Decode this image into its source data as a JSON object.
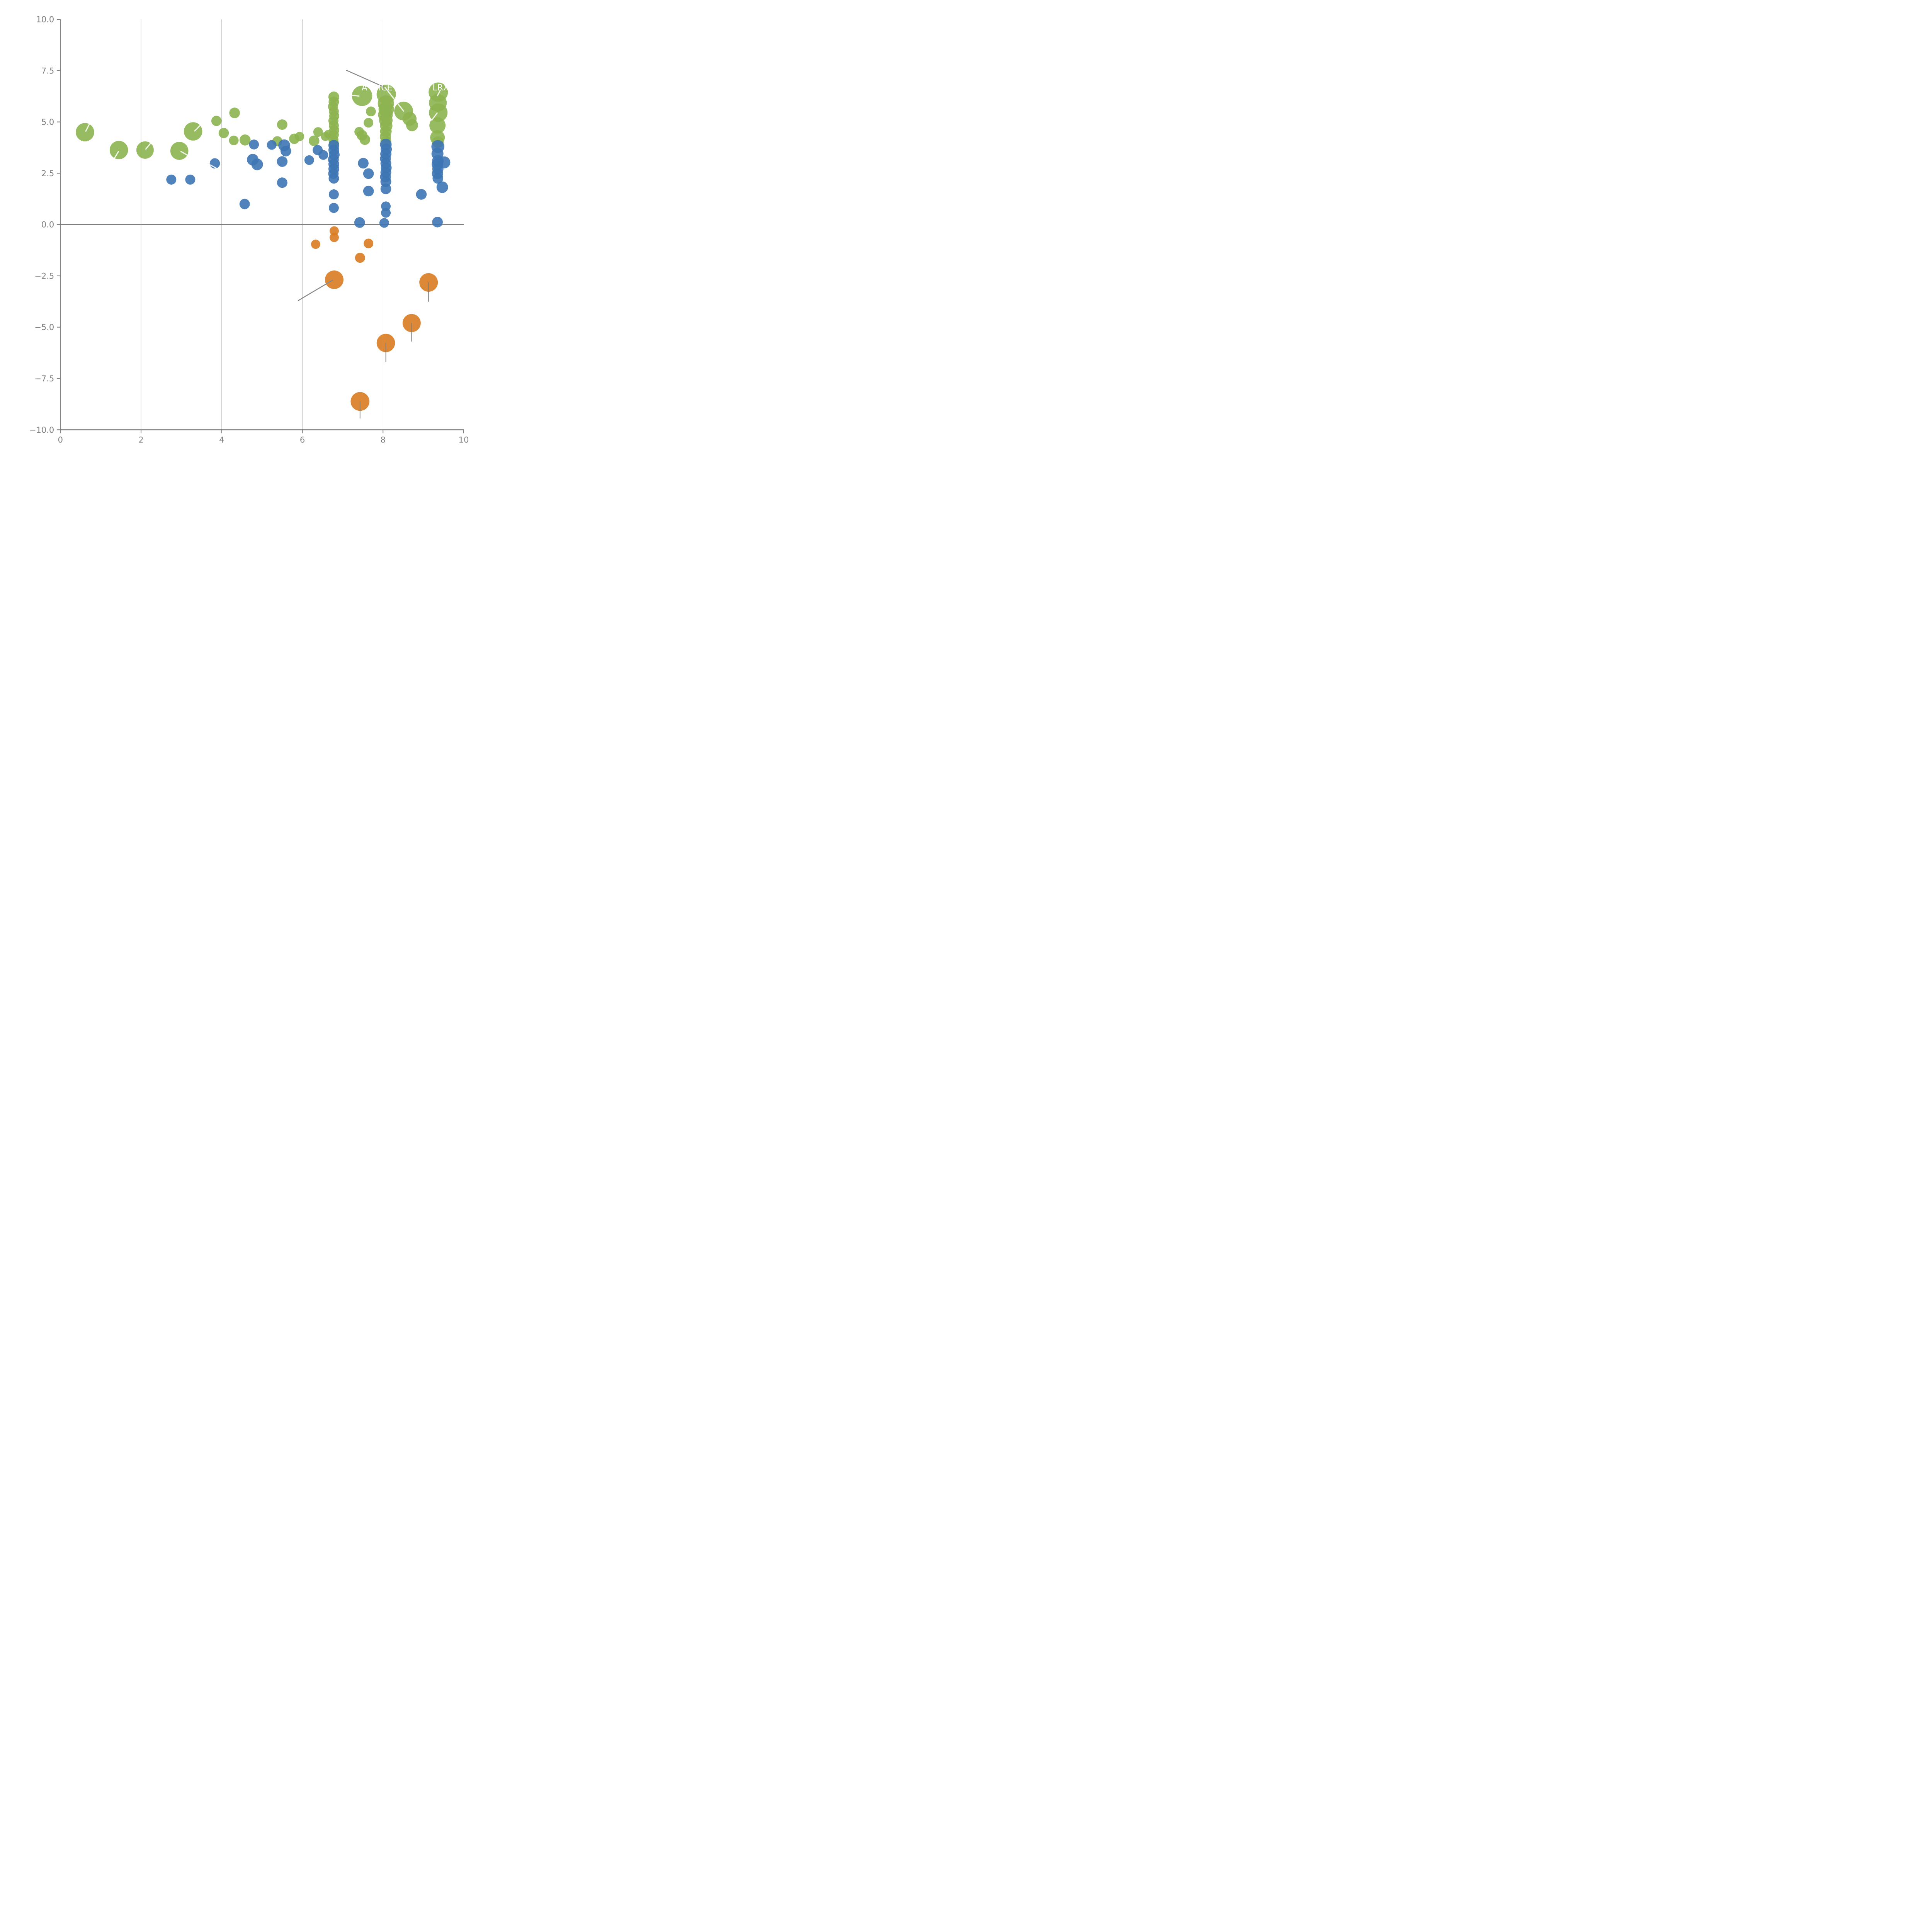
{
  "chart_data": {
    "type": "scatter",
    "title": "",
    "xlabel": "",
    "ylabel": "",
    "xlim": [
      0,
      10
    ],
    "ylim": [
      -10,
      10
    ],
    "grid": {
      "vertical_x": [
        2,
        4,
        6,
        8
      ],
      "horizontal": false
    },
    "zero_line_y": 0,
    "legend": "none",
    "x_ticks": {
      "values": [
        0,
        2,
        4,
        6,
        8,
        10
      ],
      "labels": [
        "0",
        "2",
        "4",
        "6",
        "8",
        "10"
      ]
    },
    "y_ticks": {
      "values": [
        10.0,
        7.5,
        5.0,
        2.5,
        0.0,
        -2.5,
        -5.0,
        -7.5,
        -10.0
      ],
      "labels": [
        "10.0",
        "7.5",
        "5.0",
        "2.5",
        "0.0",
        "−2.5",
        "−5.0",
        "−7.5",
        "−10.0"
      ]
    },
    "colors": {
      "green": "#8cb450",
      "blue": "#3d74b4",
      "orange": "#d97b20",
      "axis": "#7f7f7f",
      "gridline": "#9a9a9a",
      "zero_line": "#7f7f7f",
      "leader_gray": "#888888",
      "leader_white": "#ffffff",
      "tick_label": "#808080",
      "annotation_text": "#ffffff"
    },
    "bubble_opacity": 0.9,
    "series": [
      {
        "name": "green",
        "color": "#8cb450",
        "points": [
          {
            "x": 0.61,
            "y": 4.5,
            "r": 23.8
          },
          {
            "x": 1.45,
            "y": 3.63,
            "r": 23.8
          },
          {
            "x": 2.1,
            "y": 3.63,
            "r": 22.5
          },
          {
            "x": 2.95,
            "y": 3.59,
            "r": 23.3
          },
          {
            "x": 3.29,
            "y": 4.54,
            "r": 23.8
          },
          {
            "x": 3.87,
            "y": 5.05,
            "r": 13.3
          },
          {
            "x": 4.32,
            "y": 5.44,
            "r": 13.8
          },
          {
            "x": 4.05,
            "y": 4.46,
            "r": 13.3
          },
          {
            "x": 4.3,
            "y": 4.1,
            "r": 12.5
          },
          {
            "x": 4.58,
            "y": 4.12,
            "r": 14.3
          },
          {
            "x": 5.38,
            "y": 4.06,
            "r": 13.0
          },
          {
            "x": 5.5,
            "y": 4.87,
            "r": 13.5
          },
          {
            "x": 5.8,
            "y": 4.18,
            "r": 13.5
          },
          {
            "x": 5.93,
            "y": 4.29,
            "r": 12.0
          },
          {
            "x": 6.29,
            "y": 4.08,
            "r": 13.8
          },
          {
            "x": 6.39,
            "y": 4.51,
            "r": 12.5
          },
          {
            "x": 6.57,
            "y": 4.29,
            "r": 11.5
          },
          {
            "x": 6.65,
            "y": 4.4,
            "r": 11.5
          },
          {
            "x": 7.41,
            "y": 4.52,
            "r": 12.5
          },
          {
            "x": 7.48,
            "y": 4.35,
            "r": 13.8
          },
          {
            "x": 7.55,
            "y": 4.14,
            "r": 13.8
          },
          {
            "x": 7.64,
            "y": 4.96,
            "r": 12.5
          },
          {
            "x": 7.7,
            "y": 5.51,
            "r": 12.8
          },
          {
            "x": 7.48,
            "y": 6.27,
            "r": 26.3
          },
          {
            "x": 8.08,
            "y": 6.35,
            "r": 25.0
          },
          {
            "x": 8.51,
            "y": 5.53,
            "r": 24.3
          },
          {
            "x": 8.66,
            "y": 5.15,
            "r": 18.0
          },
          {
            "x": 8.72,
            "y": 4.84,
            "r": 15.5
          },
          {
            "x": 9.37,
            "y": 6.45,
            "r": 25.0
          },
          {
            "x": 6.78,
            "y": 6.22,
            "r": 14.0
          },
          {
            "x": 6.78,
            "y": 5.98,
            "r": 13.5
          },
          {
            "x": 6.76,
            "y": 5.75,
            "r": 13.0
          },
          {
            "x": 6.78,
            "y": 5.52,
            "r": 13.0
          },
          {
            "x": 6.79,
            "y": 5.29,
            "r": 13.0
          },
          {
            "x": 6.77,
            "y": 5.06,
            "r": 13.0
          },
          {
            "x": 6.78,
            "y": 4.83,
            "r": 13.0
          },
          {
            "x": 6.79,
            "y": 4.6,
            "r": 13.0
          },
          {
            "x": 6.78,
            "y": 4.37,
            "r": 13.0
          },
          {
            "x": 6.77,
            "y": 4.14,
            "r": 13.0
          },
          {
            "x": 6.78,
            "y": 3.97,
            "r": 13.0
          },
          {
            "x": 8.07,
            "y": 5.9,
            "r": 21.0
          },
          {
            "x": 8.08,
            "y": 5.62,
            "r": 20.0
          },
          {
            "x": 8.06,
            "y": 5.35,
            "r": 19.0
          },
          {
            "x": 8.07,
            "y": 5.08,
            "r": 17.5
          },
          {
            "x": 8.08,
            "y": 4.81,
            "r": 16.0
          },
          {
            "x": 8.07,
            "y": 4.54,
            "r": 15.0
          },
          {
            "x": 8.06,
            "y": 4.28,
            "r": 14.5
          },
          {
            "x": 8.07,
            "y": 4.05,
            "r": 14.0
          },
          {
            "x": 9.36,
            "y": 5.93,
            "r": 23.0
          },
          {
            "x": 9.37,
            "y": 5.45,
            "r": 24.0
          },
          {
            "x": 9.35,
            "y": 4.83,
            "r": 21.0
          },
          {
            "x": 9.35,
            "y": 4.24,
            "r": 19.0
          },
          {
            "x": 9.36,
            "y": 4.02,
            "r": 15.0
          }
        ]
      },
      {
        "name": "blue",
        "color": "#3d74b4",
        "points": [
          {
            "x": 2.75,
            "y": 2.19,
            "r": 13.0
          },
          {
            "x": 3.22,
            "y": 2.19,
            "r": 13.0
          },
          {
            "x": 3.83,
            "y": 2.98,
            "r": 13.3
          },
          {
            "x": 4.8,
            "y": 3.9,
            "r": 12.8
          },
          {
            "x": 5.24,
            "y": 3.88,
            "r": 12.5
          },
          {
            "x": 5.55,
            "y": 3.86,
            "r": 15.3
          },
          {
            "x": 5.59,
            "y": 3.58,
            "r": 13.8
          },
          {
            "x": 4.77,
            "y": 3.16,
            "r": 15.0
          },
          {
            "x": 4.88,
            "y": 2.93,
            "r": 15.0
          },
          {
            "x": 5.5,
            "y": 3.07,
            "r": 13.8
          },
          {
            "x": 5.5,
            "y": 2.04,
            "r": 13.5
          },
          {
            "x": 6.17,
            "y": 3.14,
            "r": 12.5
          },
          {
            "x": 6.38,
            "y": 3.63,
            "r": 13.0
          },
          {
            "x": 6.52,
            "y": 3.39,
            "r": 12.5
          },
          {
            "x": 4.57,
            "y": 1.0,
            "r": 13.5
          },
          {
            "x": 7.51,
            "y": 2.99,
            "r": 13.8
          },
          {
            "x": 7.64,
            "y": 2.48,
            "r": 13.8
          },
          {
            "x": 7.64,
            "y": 1.63,
            "r": 13.8
          },
          {
            "x": 7.42,
            "y": 0.1,
            "r": 13.8
          },
          {
            "x": 8.95,
            "y": 1.47,
            "r": 13.8
          },
          {
            "x": 6.78,
            "y": 3.86,
            "r": 14.0
          },
          {
            "x": 6.78,
            "y": 3.63,
            "r": 14.0
          },
          {
            "x": 6.79,
            "y": 3.4,
            "r": 14.0
          },
          {
            "x": 6.77,
            "y": 3.17,
            "r": 14.0
          },
          {
            "x": 6.78,
            "y": 2.94,
            "r": 14.0
          },
          {
            "x": 6.78,
            "y": 2.71,
            "r": 14.0
          },
          {
            "x": 6.77,
            "y": 2.48,
            "r": 13.5
          },
          {
            "x": 6.78,
            "y": 2.25,
            "r": 13.5
          },
          {
            "x": 6.78,
            "y": 1.47,
            "r": 13.0
          },
          {
            "x": 6.78,
            "y": 0.81,
            "r": 13.0
          },
          {
            "x": 8.07,
            "y": 3.9,
            "r": 15.0
          },
          {
            "x": 8.08,
            "y": 3.67,
            "r": 14.5
          },
          {
            "x": 8.07,
            "y": 3.44,
            "r": 14.5
          },
          {
            "x": 8.06,
            "y": 3.21,
            "r": 14.0
          },
          {
            "x": 8.07,
            "y": 2.98,
            "r": 14.0
          },
          {
            "x": 8.08,
            "y": 2.76,
            "r": 14.0
          },
          {
            "x": 8.07,
            "y": 2.54,
            "r": 14.0
          },
          {
            "x": 8.06,
            "y": 2.32,
            "r": 14.0
          },
          {
            "x": 8.07,
            "y": 2.09,
            "r": 14.0
          },
          {
            "x": 8.07,
            "y": 1.74,
            "r": 13.8
          },
          {
            "x": 8.07,
            "y": 0.89,
            "r": 12.5
          },
          {
            "x": 8.07,
            "y": 0.57,
            "r": 12.5
          },
          {
            "x": 8.03,
            "y": 0.08,
            "r": 12.5
          },
          {
            "x": 9.36,
            "y": 3.8,
            "r": 16.8
          },
          {
            "x": 9.35,
            "y": 3.45,
            "r": 15.5
          },
          {
            "x": 9.36,
            "y": 3.1,
            "r": 15.0
          },
          {
            "x": 9.52,
            "y": 3.03,
            "r": 15.5
          },
          {
            "x": 9.35,
            "y": 2.94,
            "r": 15.0
          },
          {
            "x": 9.36,
            "y": 2.71,
            "r": 14.5
          },
          {
            "x": 9.35,
            "y": 2.48,
            "r": 14.5
          },
          {
            "x": 9.36,
            "y": 2.25,
            "r": 13.8
          },
          {
            "x": 9.47,
            "y": 1.82,
            "r": 15.0
          },
          {
            "x": 9.35,
            "y": 0.12,
            "r": 13.8
          }
        ]
      },
      {
        "name": "orange",
        "color": "#d97b20",
        "points": [
          {
            "x": 6.33,
            "y": -0.96,
            "r": 12.0
          },
          {
            "x": 6.79,
            "y": -0.31,
            "r": 12.0
          },
          {
            "x": 6.79,
            "y": -0.63,
            "r": 12.0
          },
          {
            "x": 7.64,
            "y": -0.92,
            "r": 12.5
          },
          {
            "x": 7.43,
            "y": -1.62,
            "r": 13.0
          },
          {
            "x": 6.79,
            "y": -2.69,
            "r": 24.0
          },
          {
            "x": 9.13,
            "y": -2.82,
            "r": 24.0
          },
          {
            "x": 8.71,
            "y": -4.8,
            "r": 23.5
          },
          {
            "x": 8.07,
            "y": -5.77,
            "r": 23.8
          },
          {
            "x": 7.43,
            "y": -8.62,
            "r": 24.3
          }
        ]
      }
    ],
    "error_bars": [
      {
        "x": 9.13,
        "y_from": -2.82,
        "y_to": -3.76
      },
      {
        "x": 8.71,
        "y_from": -4.8,
        "y_to": -5.7
      },
      {
        "x": 8.07,
        "y_from": -5.77,
        "y_to": -6.7
      },
      {
        "x": 7.43,
        "y_from": -8.62,
        "y_to": -9.45
      }
    ],
    "leader_lines_gray": [
      {
        "x1": 7.1,
        "y1": 7.51,
        "x2": 8.05,
        "y2": 6.68
      },
      {
        "x1": 6.75,
        "y1": -2.71,
        "x2": 5.9,
        "y2": -3.7
      }
    ],
    "leader_lines_white": [
      {
        "x1": 8.05,
        "y1": 6.68,
        "x2": 8.51,
        "y2": 5.53
      },
      {
        "x1": 0.63,
        "y1": 4.55,
        "x2": 0.72,
        "y2": 4.9
      },
      {
        "x1": 1.34,
        "y1": 3.23,
        "x2": 1.44,
        "y2": 3.56
      },
      {
        "x1": 2.12,
        "y1": 3.68,
        "x2": 2.24,
        "y2": 3.97
      },
      {
        "x1": 2.99,
        "y1": 3.56,
        "x2": 3.15,
        "y2": 3.38
      },
      {
        "x1": 3.33,
        "y1": 4.56,
        "x2": 3.47,
        "y2": 4.84
      },
      {
        "x1": 3.72,
        "y1": 2.9,
        "x2": 3.87,
        "y2": 2.74
      },
      {
        "x1": 7.21,
        "y1": 6.31,
        "x2": 7.4,
        "y2": 6.26
      },
      {
        "x1": 9.21,
        "y1": 5.09,
        "x2": 9.34,
        "y2": 5.43
      },
      {
        "x1": 9.35,
        "y1": 6.28,
        "x2": 9.42,
        "y2": 6.55
      }
    ],
    "annotations": [
      {
        "text": "A",
        "x": 7.54,
        "y": 6.68
      },
      {
        "text": "ICE",
        "x": 8.06,
        "y": 6.68
      },
      {
        "text": "LRX",
        "x": 9.43,
        "y": 6.68
      }
    ]
  },
  "layout_note": "bubble scatter plot, no title, no legend, left and bottom gray spines only"
}
